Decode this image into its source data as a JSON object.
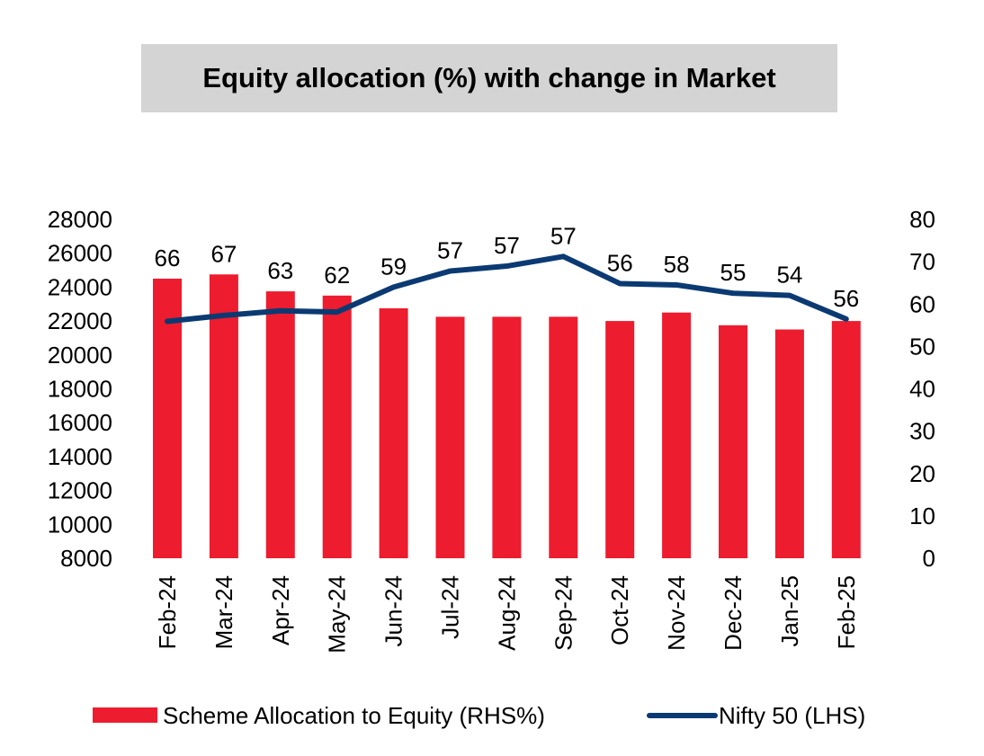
{
  "chart_data": {
    "type": "bar",
    "title": "Equity allocation (%) with change in Market",
    "categories": [
      "Feb-24",
      "Mar-24",
      "Apr-24",
      "May-24",
      "Jun-24",
      "Jul-24",
      "Aug-24",
      "Sep-24",
      "Oct-24",
      "Nov-24",
      "Dec-24",
      "Jan-25",
      "Feb-25"
    ],
    "series": [
      {
        "name": "Scheme Allocation to Equity (RHS%)",
        "type": "bar",
        "axis": "right",
        "values": [
          66,
          67,
          63,
          62,
          59,
          57,
          57,
          57,
          56,
          58,
          55,
          54,
          56
        ],
        "color": "#ed1c2e"
      },
      {
        "name": "Nifty 50 (LHS)",
        "type": "line",
        "axis": "left",
        "values": [
          21980,
          22330,
          22600,
          22530,
          24000,
          24950,
          25240,
          25810,
          24210,
          24130,
          23640,
          23510,
          22120
        ],
        "color": "#0b3a73"
      }
    ],
    "y_left": {
      "min": 8000,
      "max": 28000,
      "ticks": [
        28000,
        26000,
        24000,
        22000,
        20000,
        18000,
        16000,
        14000,
        12000,
        10000,
        8000
      ]
    },
    "y_right": {
      "min": 0,
      "max": 80,
      "ticks": [
        80,
        70,
        60,
        50,
        40,
        30,
        20,
        10,
        0
      ]
    },
    "grid": false,
    "legend_position": "bottom"
  }
}
